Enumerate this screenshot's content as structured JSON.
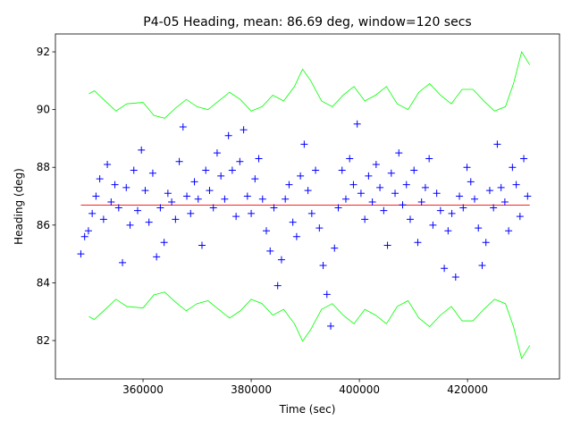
{
  "chart_data": {
    "type": "scatter",
    "title": "P4-05 Heading, mean: 86.69 deg, window=120 secs",
    "xlabel": "Time (sec)",
    "ylabel": "Heading (deg)",
    "xlim": [
      343800,
      437000
    ],
    "ylim": [
      80.67,
      92.62
    ],
    "xticks": [
      360000,
      380000,
      400000,
      420000
    ],
    "yticks": [
      82,
      84,
      86,
      88,
      90,
      92
    ],
    "points": {
      "color": "#0000ff",
      "marker": "+",
      "x": [
        348500,
        349200,
        349900,
        350600,
        351300,
        352000,
        352700,
        353400,
        354100,
        354800,
        355500,
        356200,
        356900,
        357600,
        358300,
        359000,
        359700,
        360400,
        361100,
        361800,
        362500,
        363200,
        363900,
        364600,
        365300,
        366000,
        366700,
        367400,
        368100,
        368800,
        369500,
        370200,
        370900,
        371600,
        372300,
        373000,
        373700,
        374400,
        375100,
        375800,
        376500,
        377200,
        377900,
        378600,
        379300,
        380000,
        380700,
        381400,
        382100,
        382800,
        383500,
        384200,
        384900,
        385600,
        386300,
        387000,
        387700,
        388400,
        389100,
        389800,
        390500,
        391200,
        391900,
        392600,
        393300,
        394000,
        394700,
        395400,
        396100,
        396800,
        397500,
        398200,
        398900,
        399600,
        400300,
        401000,
        401700,
        402400,
        403100,
        403800,
        404500,
        405200,
        405900,
        406600,
        407300,
        408000,
        408700,
        409400,
        410100,
        410800,
        411500,
        412200,
        412900,
        413600,
        414300,
        415000,
        415700,
        416400,
        417100,
        417800,
        418500,
        419200,
        419900,
        420600,
        421300,
        422000,
        422700,
        423400,
        424100,
        424800,
        425500,
        426200,
        426900,
        427600,
        428300,
        429000,
        429700,
        430400,
        431100
      ],
      "y": [
        85.0,
        85.6,
        85.8,
        86.4,
        87.0,
        87.6,
        86.2,
        88.1,
        86.8,
        87.4,
        86.6,
        84.7,
        87.3,
        86.0,
        87.9,
        86.5,
        88.6,
        87.2,
        86.1,
        87.8,
        84.9,
        86.6,
        85.4,
        87.1,
        86.8,
        86.2,
        88.2,
        89.4,
        87.0,
        86.4,
        87.5,
        86.9,
        85.3,
        87.9,
        87.2,
        86.6,
        88.5,
        87.7,
        86.9,
        89.1,
        87.9,
        86.3,
        88.2,
        89.3,
        87.0,
        86.4,
        87.6,
        88.3,
        86.9,
        85.8,
        85.1,
        86.6,
        83.9,
        84.8,
        86.9,
        87.4,
        86.1,
        85.6,
        87.7,
        88.8,
        87.2,
        86.4,
        87.9,
        85.9,
        84.6,
        83.6,
        82.5,
        85.2,
        86.6,
        87.9,
        86.9,
        88.3,
        87.4,
        89.5,
        87.1,
        86.2,
        87.7,
        86.8,
        88.1,
        87.3,
        86.5,
        85.3,
        87.8,
        87.1,
        88.5,
        86.7,
        87.4,
        86.2,
        87.9,
        85.4,
        86.8,
        87.3,
        88.3,
        86.0,
        87.1,
        86.5,
        84.5,
        85.8,
        86.4,
        84.2,
        87.0,
        86.6,
        88.0,
        87.5,
        86.9,
        85.9,
        84.6,
        85.4,
        87.2,
        86.6,
        88.8,
        87.3,
        86.8,
        85.8,
        88.0,
        87.4,
        86.3,
        88.3,
        87.0
      ]
    },
    "lines": [
      {
        "color": "#ff0000",
        "x": [
          348500,
          431500
        ],
        "y": [
          86.69,
          86.69
        ]
      },
      {
        "color": "#00ff00",
        "x": [
          350000,
          351000,
          353000,
          355000,
          357000,
          360000,
          362000,
          364000,
          366000,
          368000,
          370000,
          372000,
          374000,
          376000,
          378000,
          380000,
          382000,
          384000,
          386000,
          388000,
          389500,
          391000,
          393000,
          395000,
          397000,
          399000,
          401000,
          403000,
          405000,
          407000,
          409000,
          411000,
          413000,
          415000,
          417000,
          419000,
          421000,
          423000,
          425000,
          427000,
          428500,
          430000,
          431500
        ],
        "y": [
          90.55,
          90.65,
          90.3,
          89.95,
          90.2,
          90.25,
          89.8,
          89.7,
          90.05,
          90.35,
          90.1,
          90.0,
          90.3,
          90.6,
          90.35,
          89.95,
          90.1,
          90.5,
          90.3,
          90.8,
          91.4,
          91.0,
          90.3,
          90.1,
          90.5,
          90.8,
          90.3,
          90.5,
          90.8,
          90.2,
          90.0,
          90.6,
          90.9,
          90.5,
          90.2,
          90.7,
          90.7,
          90.3,
          89.95,
          90.1,
          90.9,
          92.0,
          91.55
        ]
      },
      {
        "color": "#00ff00",
        "x": [
          350000,
          351000,
          353000,
          355000,
          357000,
          360000,
          362000,
          364000,
          366000,
          368000,
          370000,
          372000,
          374000,
          376000,
          378000,
          380000,
          382000,
          384000,
          386000,
          388000,
          389500,
          391000,
          393000,
          395000,
          397000,
          399000,
          401000,
          403000,
          405000,
          407000,
          409000,
          411000,
          413000,
          415000,
          417000,
          419000,
          421000,
          423000,
          425000,
          427000,
          428500,
          430000,
          431500
        ],
        "y": [
          82.83,
          82.73,
          83.08,
          83.43,
          83.18,
          83.13,
          83.58,
          83.68,
          83.33,
          83.03,
          83.28,
          83.38,
          83.08,
          82.78,
          83.03,
          83.43,
          83.28,
          82.88,
          83.08,
          82.58,
          81.98,
          82.38,
          83.08,
          83.28,
          82.88,
          82.58,
          83.08,
          82.88,
          82.58,
          83.18,
          83.38,
          82.78,
          82.48,
          82.88,
          83.18,
          82.68,
          82.68,
          83.08,
          83.43,
          83.28,
          82.48,
          81.38,
          81.83
        ]
      }
    ]
  }
}
